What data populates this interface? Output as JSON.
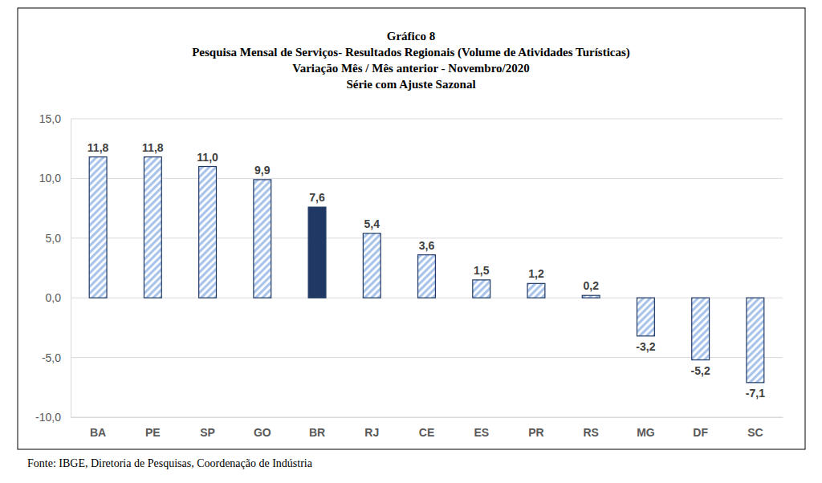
{
  "chart_data": {
    "type": "bar",
    "title": "Gráfico 8",
    "subtitle": [
      "Pesquisa Mensal de Serviços- Resultados Regionais (Volume de Atividades Turísticas)",
      "Variação Mês / Mês anterior - Novembro/2020",
      "Série com Ajuste Sazonal"
    ],
    "source": "Fonte: IBGE, Diretoria de Pesquisas, Coordenação de Indústria",
    "categories": [
      "BA",
      "PE",
      "SP",
      "GO",
      "BR",
      "RJ",
      "CE",
      "ES",
      "PR",
      "RS",
      "MG",
      "DF",
      "SC"
    ],
    "values": [
      11.8,
      11.8,
      11.0,
      9.9,
      7.6,
      5.4,
      3.6,
      1.5,
      1.2,
      0.2,
      -3.2,
      -5.2,
      -7.1
    ],
    "value_labels": [
      "11,8",
      "11,8",
      "11,0",
      "9,9",
      "7,6",
      "5,4",
      "3,6",
      "1,5",
      "1,2",
      "0,2",
      "-3,2",
      "-5,2",
      "-7,1"
    ],
    "colors": [
      "#a9c4eb",
      "#a9c4eb",
      "#a9c4eb",
      "#a9c4eb",
      "#1f3864",
      "#a9c4eb",
      "#a9c4eb",
      "#a9c4eb",
      "#a9c4eb",
      "#a9c4eb",
      "#a9c4eb",
      "#a9c4eb",
      "#a9c4eb"
    ],
    "ylim": [
      -10,
      15
    ],
    "yticks": [
      {
        "value": -10,
        "label": "-10,0"
      },
      {
        "value": -5,
        "label": "-5,0"
      },
      {
        "value": 0,
        "label": "0,0"
      },
      {
        "value": 5,
        "label": "5,0"
      },
      {
        "value": 10,
        "label": "10,0"
      },
      {
        "value": 15,
        "label": "15,0"
      }
    ],
    "grid": true,
    "data_labels": true
  }
}
